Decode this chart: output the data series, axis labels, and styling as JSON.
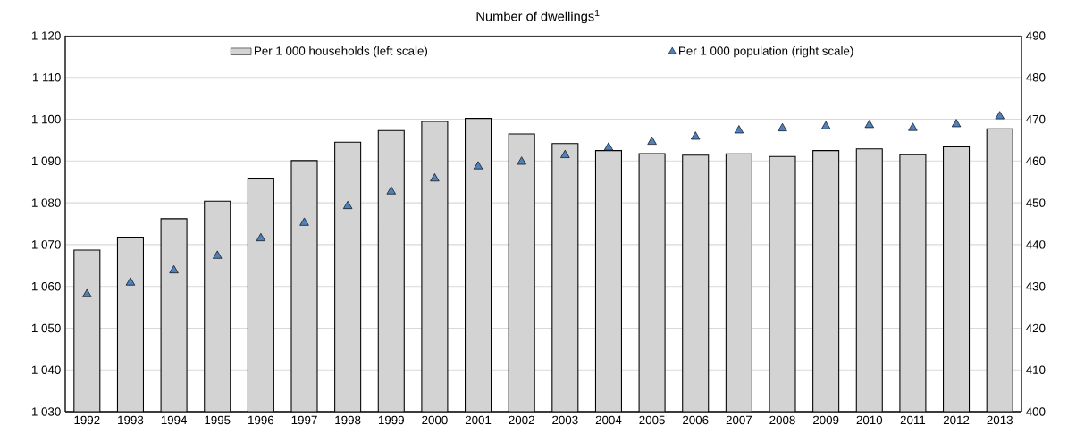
{
  "chart_data": {
    "type": "bar",
    "title": "Number of dwellings$^{1}$",
    "categories": [
      "1992",
      "1993",
      "1994",
      "1995",
      "1996",
      "1997",
      "1998",
      "1999",
      "2000",
      "2001",
      "2002",
      "2003",
      "2004",
      "2005",
      "2006",
      "2007",
      "2008",
      "2009",
      "2010",
      "2011",
      "2012",
      "2013"
    ],
    "series": [
      {
        "name": "Per 1 000 households (left scale)",
        "color": "#d3d3d3",
        "values": [
          1068.7,
          1071.8,
          1076.2,
          1080.4,
          1085.9,
          1090.1,
          1094.5,
          1097.3,
          1099.5,
          1100.2,
          1096.5,
          1094.2,
          1092.5,
          1091.8,
          1091.4,
          1091.7,
          1091.1,
          1092.5,
          1092.9,
          1091.5,
          1093.4,
          1097.7
        ]
      },
      {
        "name": "Per 1 000 population (right scale)",
        "type": "scatter",
        "axis": "y2",
        "marker": "triangle",
        "color": "#4f81bd",
        "values": [
          428.1,
          430.9,
          433.8,
          437.3,
          441.5,
          445.2,
          449.2,
          452.7,
          455.8,
          458.7,
          459.8,
          461.4,
          463.2,
          464.6,
          465.8,
          467.3,
          467.8,
          468.3,
          468.6,
          467.9,
          468.8,
          470.7
        ]
      }
    ],
    "ylim": [
      1030,
      1120
    ],
    "yticks": [
      {
        "value": 1030,
        "label": "1 030"
      },
      {
        "value": 1040,
        "label": "1 040"
      },
      {
        "value": 1050,
        "label": "1 050"
      },
      {
        "value": 1060,
        "label": "1 060"
      },
      {
        "value": 1070,
        "label": "1 070"
      },
      {
        "value": 1080,
        "label": "1 080"
      },
      {
        "value": 1090,
        "label": "1 090"
      },
      {
        "value": 1100,
        "label": "1 100"
      },
      {
        "value": 1110,
        "label": "1 110"
      },
      {
        "value": 1120,
        "label": "1 120"
      }
    ],
    "y2lim": [
      400,
      490
    ],
    "y2ticks": [
      400,
      410,
      420,
      430,
      440,
      450,
      460,
      470,
      480,
      490
    ],
    "grid": "y",
    "legend": "top"
  }
}
